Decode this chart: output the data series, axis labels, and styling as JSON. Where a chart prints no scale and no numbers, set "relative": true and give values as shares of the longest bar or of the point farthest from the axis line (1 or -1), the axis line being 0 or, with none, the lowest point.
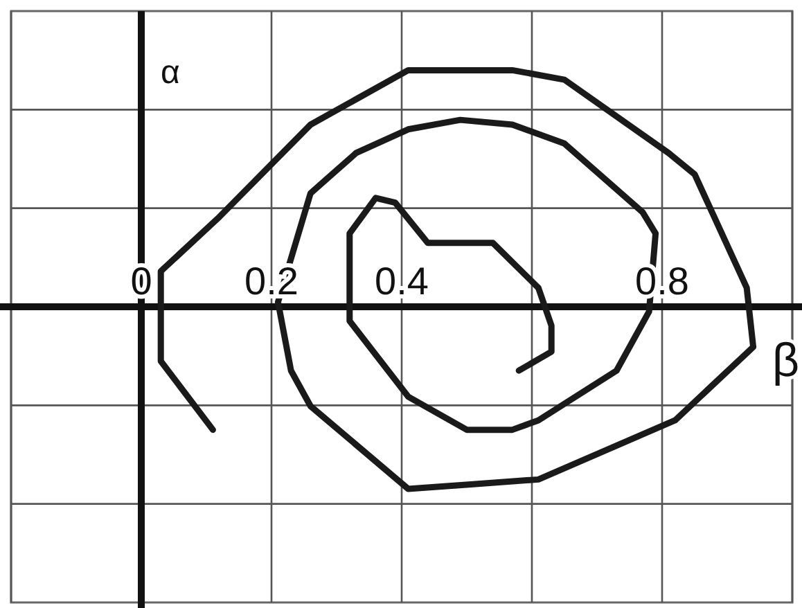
{
  "chart_data": {
    "type": "line",
    "xlabel": "β",
    "ylabel": "α",
    "xlim": [
      -0.2,
      1.0
    ],
    "xticks": [
      0,
      0.2,
      0.4,
      0.8
    ],
    "relative": true,
    "grid": true,
    "series": [
      {
        "color": "#1a1a1a",
        "x": [
          0.11,
          0.03,
          0.03,
          0.12,
          0.26,
          0.41,
          0.57,
          0.65,
          0.81,
          0.85,
          0.93,
          0.94,
          0.82,
          0.61,
          0.51,
          0.41,
          0.26,
          0.23,
          0.21,
          0.26,
          0.33,
          0.41,
          0.49,
          0.57,
          0.65,
          0.77,
          0.79,
          0.78,
          0.73,
          0.61,
          0.57,
          0.5,
          0.41,
          0.32,
          0.32,
          0.36,
          0.39,
          0.44,
          0.54,
          0.61,
          0.63,
          0.63,
          0.58
        ],
        "values": [
          -0.52,
          -0.23,
          0.15,
          0.38,
          0.77,
          1,
          1,
          0.96,
          0.65,
          0.56,
          0.08,
          -0.17,
          -0.48,
          -0.73,
          -0.75,
          -0.77,
          -0.42,
          -0.27,
          0.02,
          0.48,
          0.65,
          0.75,
          0.79,
          0.77,
          0.69,
          0.4,
          0.31,
          -0.02,
          -0.27,
          -0.48,
          -0.52,
          -0.52,
          -0.38,
          -0.06,
          0.31,
          0.46,
          0.44,
          0.27,
          0.27,
          0.08,
          -0.08,
          -0.19,
          -0.27
        ]
      }
    ]
  }
}
